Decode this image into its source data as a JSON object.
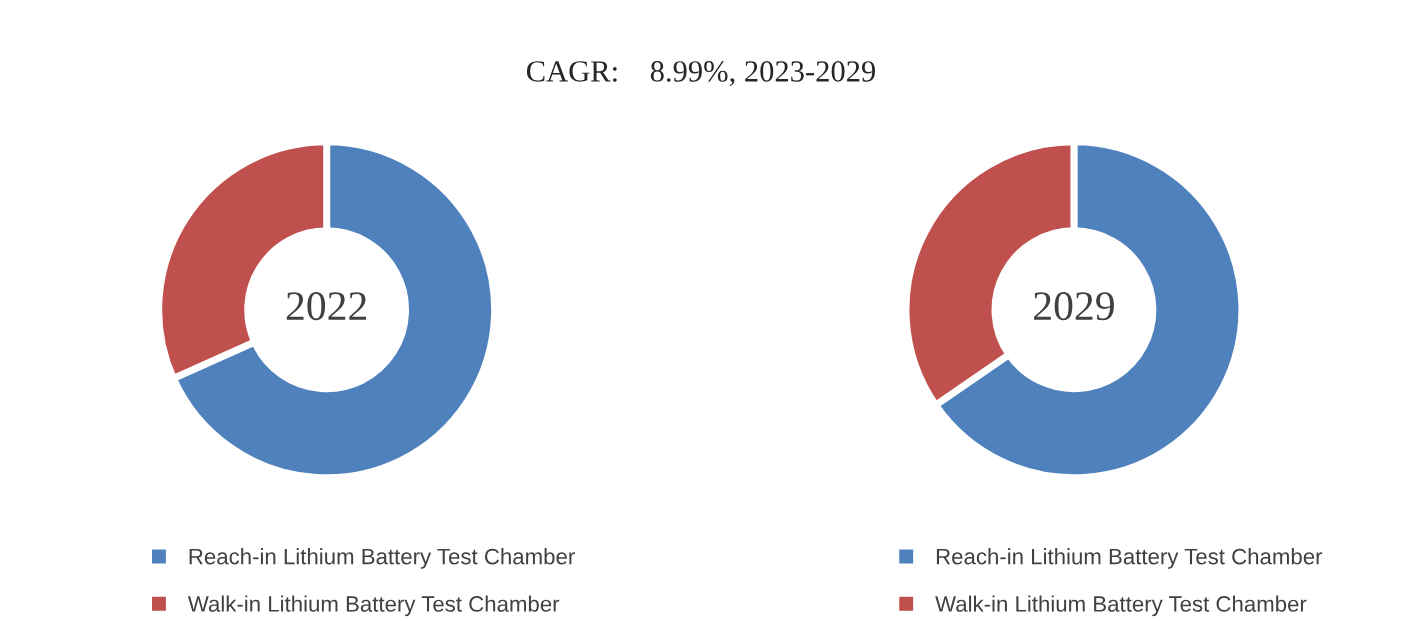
{
  "chart_data": [
    {
      "type": "donut",
      "title": "CAGR:    8.99%, 2023-2029",
      "categories": [
        "Reach-in Lithium Battery Test Chamber",
        "Walk-in Lithium Battery Test Chamber"
      ],
      "values": [
        68.3,
        31.7
      ],
      "colors": [
        "#4f81bd",
        "#c0504d"
      ],
      "annotations": [
        "2022"
      ],
      "legend": "bottom"
    },
    {
      "type": "donut",
      "categories": [
        "Reach-in Lithium Battery Test Chamber",
        "Walk-in Lithium Battery Test Chamber"
      ],
      "values": [
        65.4,
        34.6
      ],
      "colors": [
        "#4f81bd",
        "#c0504d"
      ],
      "annotations": [
        "2029"
      ],
      "legend": "bottom"
    }
  ]
}
